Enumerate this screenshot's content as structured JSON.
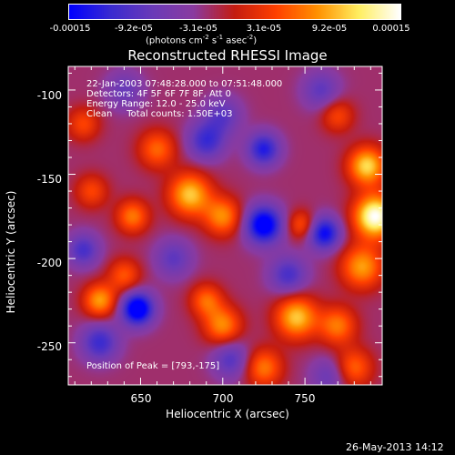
{
  "colorbar": {
    "ticks": [
      "-0.00015",
      "-9.2e-05",
      "-3.1e-05",
      "3.1e-05",
      "9.2e-05",
      "0.00015"
    ],
    "tick_values": [
      -0.00015,
      -9.2e-05,
      -3.1e-05,
      3.1e-05,
      9.2e-05,
      0.00015
    ],
    "unit_prefix": "(photons cm",
    "unit_exp1": "-2",
    "unit_mid1": " s",
    "unit_exp2": "-1",
    "unit_mid2": " asec",
    "unit_exp3": "-2",
    "unit_suffix": ")",
    "colors": [
      "#0000ff",
      "#3a2bd0",
      "#6a3ab8",
      "#8a3aa0",
      "#c41c10",
      "#ff4000",
      "#ff9000",
      "#ffee60",
      "#ffffff"
    ]
  },
  "chart_data": {
    "type": "heatmap",
    "title": "Reconstructed RHESSI Image",
    "xlabel": "Heliocentric X (arcsec)",
    "ylabel": "Heliocentric Y (arcsec)",
    "xlim": [
      606,
      797
    ],
    "ylim": [
      -275,
      -86
    ],
    "x_ticks": [
      650,
      700,
      750
    ],
    "y_ticks": [
      -100,
      -150,
      -200,
      -250
    ],
    "annotations": [
      "22-Jan-2003 07:48:28.000 to 07:51:48.000",
      "Detectors: 4F 5F 6F 7F 8F, Att 0",
      "Energy Range: 12.0 - 25.0 keV",
      "Clean     Total counts: 1.50E+03"
    ],
    "peak_label": "Position of Peak = [793,-175]",
    "peak": [
      793,
      -175
    ],
    "blobs": [
      {
        "x": 793,
        "y": -175,
        "v": 1.0,
        "s": 9
      },
      {
        "x": 788,
        "y": -145,
        "v": 0.75,
        "s": 8
      },
      {
        "x": 785,
        "y": -205,
        "v": 0.6,
        "s": 9
      },
      {
        "x": 680,
        "y": -162,
        "v": 0.7,
        "s": 9
      },
      {
        "x": 700,
        "y": -175,
        "v": 0.55,
        "s": 8
      },
      {
        "x": 660,
        "y": -135,
        "v": 0.45,
        "s": 8
      },
      {
        "x": 645,
        "y": -175,
        "v": 0.5,
        "s": 7
      },
      {
        "x": 640,
        "y": -210,
        "v": 0.4,
        "s": 7
      },
      {
        "x": 625,
        "y": -225,
        "v": 0.6,
        "s": 7
      },
      {
        "x": 745,
        "y": -235,
        "v": 0.7,
        "s": 9
      },
      {
        "x": 770,
        "y": -240,
        "v": 0.5,
        "s": 8
      },
      {
        "x": 700,
        "y": -240,
        "v": 0.55,
        "s": 8
      },
      {
        "x": 690,
        "y": -225,
        "v": 0.45,
        "s": 7
      },
      {
        "x": 748,
        "y": -180,
        "v": 0.4,
        "s": 6
      },
      {
        "x": 770,
        "y": -115,
        "v": 0.35,
        "s": 7
      },
      {
        "x": 615,
        "y": -120,
        "v": 0.35,
        "s": 7
      },
      {
        "x": 725,
        "y": -265,
        "v": 0.5,
        "s": 8
      },
      {
        "x": 780,
        "y": -265,
        "v": 0.45,
        "s": 8
      },
      {
        "x": 620,
        "y": -160,
        "v": 0.35,
        "s": 7
      },
      {
        "x": 725,
        "y": -180,
        "v": -0.85,
        "s": 8
      },
      {
        "x": 762,
        "y": -185,
        "v": -0.7,
        "s": 7
      },
      {
        "x": 648,
        "y": -230,
        "v": -0.9,
        "s": 7
      },
      {
        "x": 725,
        "y": -135,
        "v": -0.6,
        "s": 7
      },
      {
        "x": 690,
        "y": -130,
        "v": -0.5,
        "s": 8
      },
      {
        "x": 625,
        "y": -250,
        "v": -0.5,
        "s": 8
      },
      {
        "x": 615,
        "y": -195,
        "v": -0.45,
        "s": 7
      },
      {
        "x": 740,
        "y": -210,
        "v": -0.45,
        "s": 8
      },
      {
        "x": 670,
        "y": -200,
        "v": -0.35,
        "s": 8
      },
      {
        "x": 700,
        "y": -115,
        "v": -0.35,
        "s": 8
      },
      {
        "x": 760,
        "y": -100,
        "v": -0.35,
        "s": 8
      },
      {
        "x": 640,
        "y": -100,
        "v": -0.3,
        "s": 8
      },
      {
        "x": 705,
        "y": -260,
        "v": -0.4,
        "s": 8
      },
      {
        "x": 765,
        "y": -270,
        "v": -0.3,
        "s": 8
      }
    ]
  },
  "timestamp": "26-May-2013 14:12"
}
